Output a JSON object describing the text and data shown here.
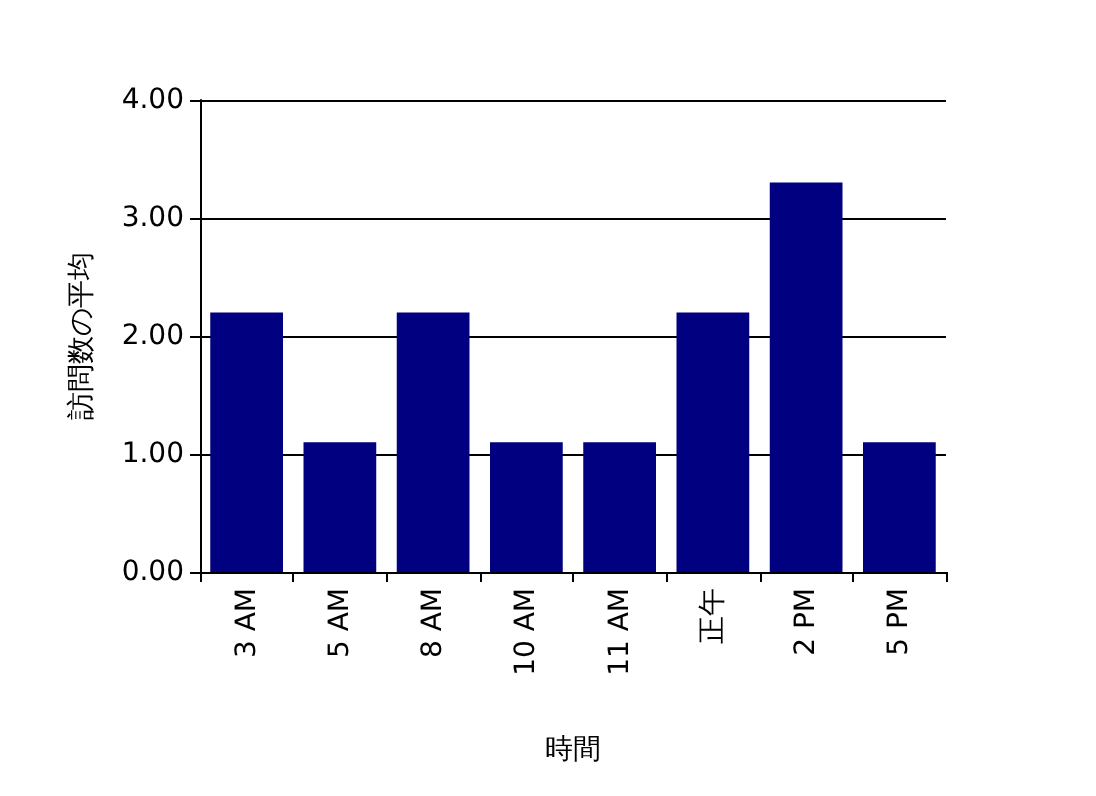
{
  "chart_data": {
    "type": "bar",
    "xlabel": "時間",
    "ylabel": "訪問数の平均",
    "categories": [
      "3 AM",
      "5 AM",
      "8 AM",
      "10 AM",
      "11 AM",
      "正午",
      "2 PM",
      "5 PM"
    ],
    "values": [
      2.2,
      1.1,
      2.2,
      1.1,
      1.1,
      2.2,
      3.3,
      1.1
    ],
    "color": "#000080",
    "ylim": [
      0,
      4
    ],
    "yticks": [
      {
        "value": 0,
        "label": "0.00"
      },
      {
        "value": 1,
        "label": "1.00"
      },
      {
        "value": 2,
        "label": "2.00"
      },
      {
        "value": 3,
        "label": "3.00"
      },
      {
        "value": 4,
        "label": "4.00"
      }
    ],
    "grid": "y"
  }
}
